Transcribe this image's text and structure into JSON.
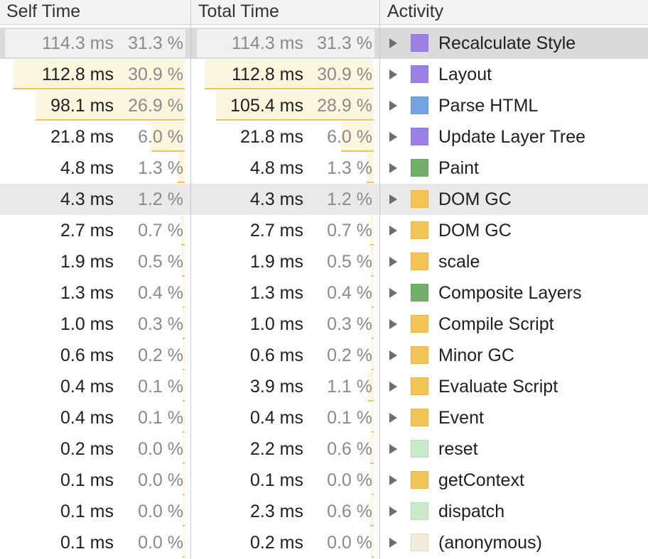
{
  "header": {
    "self_time": "Self Time",
    "total_time": "Total Time",
    "activity": "Activity"
  },
  "rows": [
    {
      "self_ms": "114.3 ms",
      "self_pct": "31.3 %",
      "total_ms": "114.3 ms",
      "total_pct": "31.3 %",
      "activity": "Recalculate Style",
      "color": "#9b80e6",
      "self_frac": 0.313,
      "total_frac": 0.313,
      "state": "selected"
    },
    {
      "self_ms": "112.8 ms",
      "self_pct": "30.9 %",
      "total_ms": "112.8 ms",
      "total_pct": "30.9 %",
      "activity": "Layout",
      "color": "#9b80e6",
      "self_frac": 0.309,
      "total_frac": 0.309,
      "state": ""
    },
    {
      "self_ms": "98.1 ms",
      "self_pct": "26.9 %",
      "total_ms": "105.4 ms",
      "total_pct": "28.9 %",
      "activity": "Parse HTML",
      "color": "#72a4e6",
      "self_frac": 0.269,
      "total_frac": 0.289,
      "state": ""
    },
    {
      "self_ms": "21.8 ms",
      "self_pct": "6.0 %",
      "total_ms": "21.8 ms",
      "total_pct": "6.0 %",
      "activity": "Update Layer Tree",
      "color": "#9b80e6",
      "self_frac": 0.06,
      "total_frac": 0.06,
      "state": ""
    },
    {
      "self_ms": "4.8 ms",
      "self_pct": "1.3 %",
      "total_ms": "4.8 ms",
      "total_pct": "1.3 %",
      "activity": "Paint",
      "color": "#72b06a",
      "self_frac": 0.013,
      "total_frac": 0.013,
      "state": ""
    },
    {
      "self_ms": "4.3 ms",
      "self_pct": "1.2 %",
      "total_ms": "4.3 ms",
      "total_pct": "1.2 %",
      "activity": "DOM GC",
      "color": "#f3c557",
      "self_frac": 0.012,
      "total_frac": 0.012,
      "state": "hover"
    },
    {
      "self_ms": "2.7 ms",
      "self_pct": "0.7 %",
      "total_ms": "2.7 ms",
      "total_pct": "0.7 %",
      "activity": "DOM GC",
      "color": "#f3c557",
      "self_frac": 0.007,
      "total_frac": 0.007,
      "state": ""
    },
    {
      "self_ms": "1.9 ms",
      "self_pct": "0.5 %",
      "total_ms": "1.9 ms",
      "total_pct": "0.5 %",
      "activity": "scale",
      "color": "#f3c557",
      "self_frac": 0.005,
      "total_frac": 0.005,
      "state": ""
    },
    {
      "self_ms": "1.3 ms",
      "self_pct": "0.4 %",
      "total_ms": "1.3 ms",
      "total_pct": "0.4 %",
      "activity": "Composite Layers",
      "color": "#72b06a",
      "self_frac": 0.004,
      "total_frac": 0.004,
      "state": ""
    },
    {
      "self_ms": "1.0 ms",
      "self_pct": "0.3 %",
      "total_ms": "1.0 ms",
      "total_pct": "0.3 %",
      "activity": "Compile Script",
      "color": "#f3c557",
      "self_frac": 0.003,
      "total_frac": 0.003,
      "state": ""
    },
    {
      "self_ms": "0.6 ms",
      "self_pct": "0.2 %",
      "total_ms": "0.6 ms",
      "total_pct": "0.2 %",
      "activity": "Minor GC",
      "color": "#f3c557",
      "self_frac": 0.002,
      "total_frac": 0.002,
      "state": ""
    },
    {
      "self_ms": "0.4 ms",
      "self_pct": "0.1 %",
      "total_ms": "3.9 ms",
      "total_pct": "1.1 %",
      "activity": "Evaluate Script",
      "color": "#f3c557",
      "self_frac": 0.001,
      "total_frac": 0.011,
      "state": ""
    },
    {
      "self_ms": "0.4 ms",
      "self_pct": "0.1 %",
      "total_ms": "0.4 ms",
      "total_pct": "0.1 %",
      "activity": "Event",
      "color": "#f3c557",
      "self_frac": 0.001,
      "total_frac": 0.001,
      "state": ""
    },
    {
      "self_ms": "0.2 ms",
      "self_pct": "0.0 %",
      "total_ms": "2.2 ms",
      "total_pct": "0.6 %",
      "activity": "reset",
      "color": "#c9ebc8",
      "self_frac": 0.0005,
      "total_frac": 0.006,
      "state": ""
    },
    {
      "self_ms": "0.1 ms",
      "self_pct": "0.0 %",
      "total_ms": "0.1 ms",
      "total_pct": "0.0 %",
      "activity": "getContext",
      "color": "#f3c557",
      "self_frac": 0.0003,
      "total_frac": 0.0003,
      "state": ""
    },
    {
      "self_ms": "0.1 ms",
      "self_pct": "0.0 %",
      "total_ms": "2.3 ms",
      "total_pct": "0.6 %",
      "activity": "dispatch",
      "color": "#c9ebc8",
      "self_frac": 0.0003,
      "total_frac": 0.006,
      "state": ""
    },
    {
      "self_ms": "0.1 ms",
      "self_pct": "0.0 %",
      "total_ms": "0.2 ms",
      "total_pct": "0.0 %",
      "activity": "(anonymous)",
      "color": "#f2ebdd",
      "self_frac": 0.0003,
      "total_frac": 0.0005,
      "state": ""
    }
  ]
}
